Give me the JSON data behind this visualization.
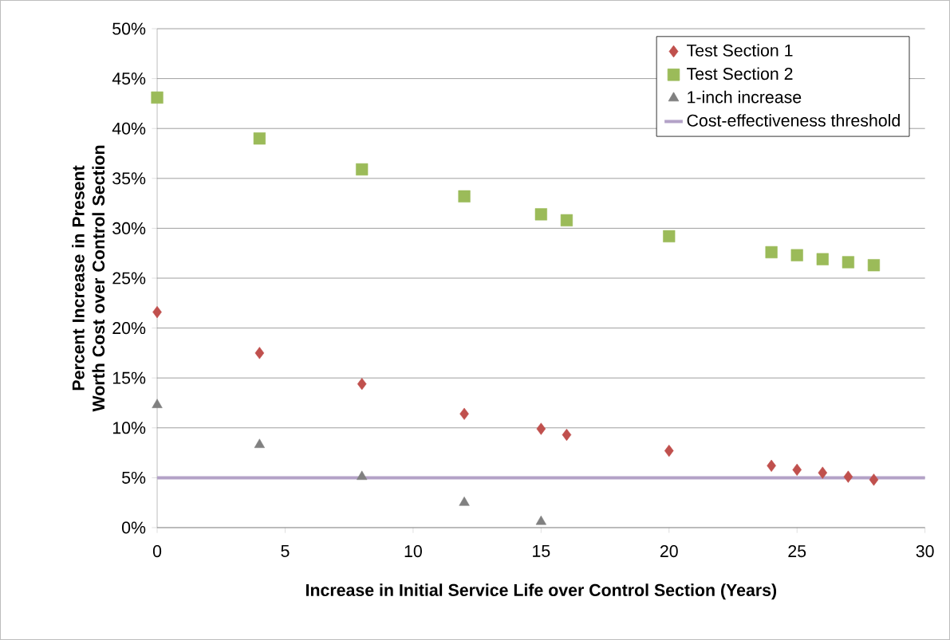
{
  "chart_data": {
    "type": "scatter",
    "xlabel": "Increase in Initial Service Life over Control Section (Years)",
    "ylabel": "Percent Increase in Present Worth Cost over Control Section",
    "xlim": [
      0,
      30
    ],
    "xticks": [
      0,
      5,
      10,
      15,
      20,
      25,
      30
    ],
    "ylim": [
      0,
      50
    ],
    "yticks": [
      {
        "value": 0,
        "label": "0%"
      },
      {
        "value": 5,
        "label": "5%"
      },
      {
        "value": 10,
        "label": "10%"
      },
      {
        "value": 15,
        "label": "15%"
      },
      {
        "value": 20,
        "label": "20%"
      },
      {
        "value": 25,
        "label": "25%"
      },
      {
        "value": 30,
        "label": "30%"
      },
      {
        "value": 35,
        "label": "35%"
      },
      {
        "value": 40,
        "label": "40%"
      },
      {
        "value": 45,
        "label": "45%"
      },
      {
        "value": 50,
        "label": "50%"
      }
    ],
    "grid": "y",
    "legend": "top right",
    "series": [
      {
        "name": "Test Section 1",
        "color": "#c0504d",
        "marker": "diamond",
        "x": [
          0,
          4,
          8,
          12,
          15,
          16,
          20,
          24,
          25,
          26,
          27,
          28
        ],
        "values": [
          21.6,
          17.5,
          14.4,
          11.4,
          9.9,
          9.3,
          7.7,
          6.2,
          5.8,
          5.5,
          5.1,
          4.8
        ]
      },
      {
        "name": "Test Section 2",
        "color": "#9bbb59",
        "marker": "square",
        "x": [
          0,
          4,
          8,
          12,
          15,
          16,
          20,
          24,
          25,
          26,
          27,
          28
        ],
        "values": [
          43.1,
          39.0,
          35.9,
          33.2,
          31.4,
          30.8,
          29.2,
          27.6,
          27.3,
          26.9,
          26.6,
          26.3
        ]
      },
      {
        "name": "1-inch increase",
        "color": "#808080",
        "marker": "triangle",
        "x": [
          0,
          4,
          8,
          12,
          15
        ],
        "values": [
          12.3,
          8.3,
          5.1,
          2.5,
          0.6
        ]
      }
    ],
    "ref_lines": [
      {
        "axis": "y",
        "value": 5,
        "label": "Cost-effectiveness threshold",
        "color": "#b3a2c7"
      }
    ]
  }
}
